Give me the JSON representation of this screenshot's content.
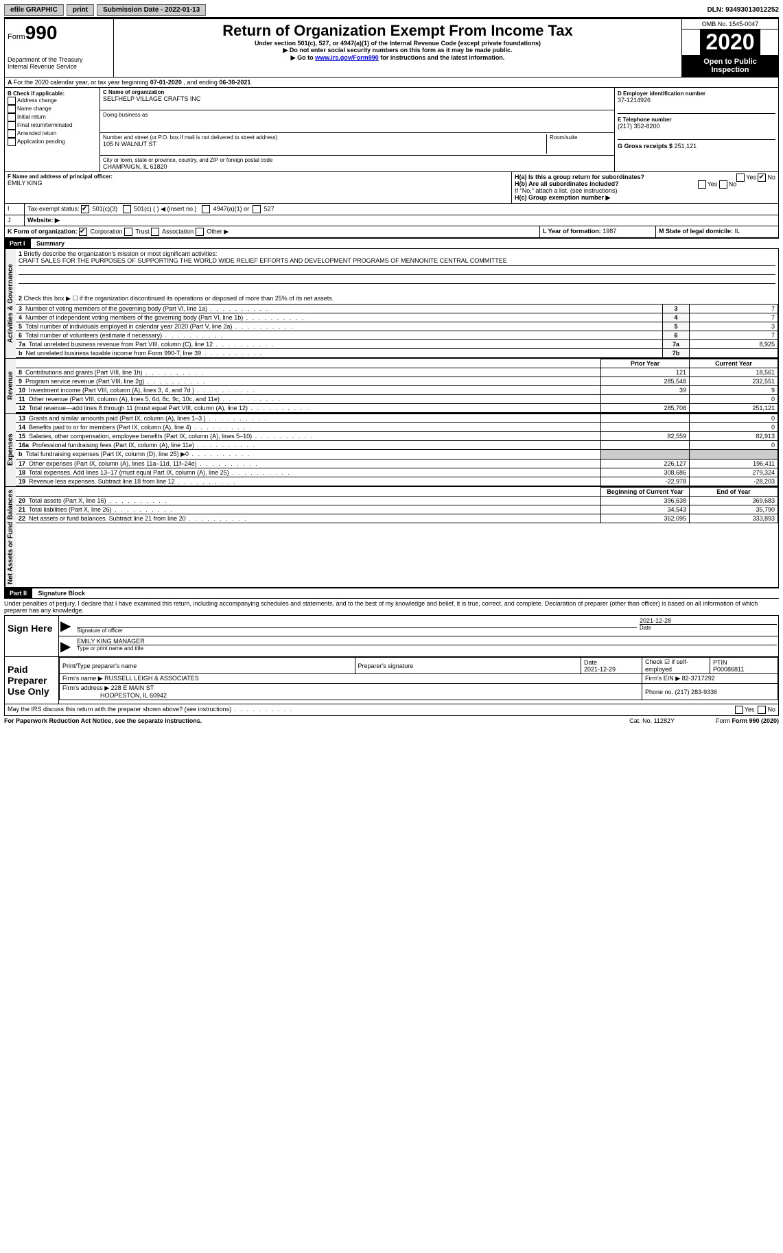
{
  "topbar": {
    "efile": "efile GRAPHIC",
    "print": "print",
    "submission_label": "Submission Date - ",
    "submission_date": "2022-01-13",
    "dln_label": "DLN: ",
    "dln": "93493013012252"
  },
  "header": {
    "form_small": "Form",
    "form_big": "990",
    "dept": "Department of the Treasury\nInternal Revenue Service",
    "title": "Return of Organization Exempt From Income Tax",
    "sub1": "Under section 501(c), 527, or 4947(a)(1) of the Internal Revenue Code (except private foundations)",
    "sub2": "▶ Do not enter social security numbers on this form as it may be made public.",
    "sub3a": "▶ Go to ",
    "sub3_link": "www.irs.gov/Form990",
    "sub3b": " for instructions and the latest information.",
    "omb": "OMB No. 1545-0047",
    "year": "2020",
    "open": "Open to Public Inspection"
  },
  "lineA": {
    "text_a": "For the 2020 calendar year, or tax year beginning ",
    "begin": "07-01-2020",
    "text_b": " , and ending ",
    "end": "06-30-2021"
  },
  "boxB": {
    "label": "B Check if applicable:",
    "opts": [
      "Address change",
      "Name change",
      "Initial return",
      "Final return/terminated",
      "Amended return",
      "Application pending"
    ]
  },
  "boxC": {
    "name_label": "C Name of organization",
    "name": "SELFHELP VILLAGE CRAFTS INC",
    "dba_label": "Doing business as",
    "addr_label": "Number and street (or P.O. box if mail is not delivered to street address)",
    "room_label": "Room/suite",
    "addr": "105 N WALNUT ST",
    "city_label": "City or town, state or province, country, and ZIP or foreign postal code",
    "city": "CHAMPAIGN, IL  61820"
  },
  "boxD": {
    "label": "D Employer identification number",
    "val": "37-1214926"
  },
  "boxE": {
    "label": "E Telephone number",
    "val": "(217) 352-8200"
  },
  "boxG": {
    "label": "G Gross receipts $ ",
    "val": "251,121"
  },
  "boxF": {
    "label": "F Name and address of principal officer:",
    "val": "EMILY KING"
  },
  "boxH": {
    "a_label": "H(a)  Is this a group return for subordinates?",
    "b_label": "H(b)  Are all subordinates included?",
    "note": "If \"No,\" attach a list. (see instructions)",
    "c_label": "H(c)  Group exemption number ▶",
    "yes": "Yes",
    "no": "No"
  },
  "lineI": {
    "label": "Tax-exempt status:",
    "o1": "501(c)(3)",
    "o2": "501(c) (   ) ◀ (insert no.)",
    "o3": "4947(a)(1) or",
    "o4": "527"
  },
  "lineJ": {
    "label": "Website: ▶"
  },
  "lineK": {
    "label": "K Form of organization:",
    "o1": "Corporation",
    "o2": "Trust",
    "o3": "Association",
    "o4": "Other ▶"
  },
  "lineL": {
    "label": "L Year of formation: ",
    "val": "1987"
  },
  "lineM": {
    "label": "M State of legal domicile: ",
    "val": "IL"
  },
  "part1": {
    "label": "Part I",
    "title": "Summary",
    "side_gov": "Activities & Governance",
    "side_rev": "Revenue",
    "side_exp": "Expenses",
    "side_net": "Net Assets or Fund Balances",
    "l1": "Briefly describe the organization's mission or most significant activities:",
    "l1_val": "CRAFT SALES FOR THE PURPOSES OF SUPPORTING THE WORLD WIDE RELIEF EFFORTS AND DEVELOPMENT PROGRAMS OF MENNONITE CENTRAL COMMITTEE",
    "l2": "Check this box ▶ ☐ if the organization discontinued its operations or disposed of more than 25% of its net assets.",
    "colh_prior": "Prior Year",
    "colh_curr": "Current Year",
    "colh_beg": "Beginning of Current Year",
    "colh_end": "End of Year",
    "rows_gov": [
      {
        "n": "3",
        "t": "Number of voting members of the governing body (Part VI, line 1a)",
        "c": "3",
        "v": "7"
      },
      {
        "n": "4",
        "t": "Number of independent voting members of the governing body (Part VI, line 1b)",
        "c": "4",
        "v": "7"
      },
      {
        "n": "5",
        "t": "Total number of individuals employed in calendar year 2020 (Part V, line 2a)",
        "c": "5",
        "v": "3"
      },
      {
        "n": "6",
        "t": "Total number of volunteers (estimate if necessary)",
        "c": "6",
        "v": "7"
      },
      {
        "n": "7a",
        "t": "Total unrelated business revenue from Part VIII, column (C), line 12",
        "c": "7a",
        "v": "8,925"
      },
      {
        "n": "b",
        "t": "Net unrelated business taxable income from Form 990-T, line 39",
        "c": "7b",
        "v": ""
      }
    ],
    "rows_rev": [
      {
        "n": "8",
        "t": "Contributions and grants (Part VIII, line 1h)",
        "p": "121",
        "c": "18,561"
      },
      {
        "n": "9",
        "t": "Program service revenue (Part VIII, line 2g)",
        "p": "285,548",
        "c": "232,551"
      },
      {
        "n": "10",
        "t": "Investment income (Part VIII, column (A), lines 3, 4, and 7d )",
        "p": "39",
        "c": "9"
      },
      {
        "n": "11",
        "t": "Other revenue (Part VIII, column (A), lines 5, 6d, 8c, 9c, 10c, and 11e)",
        "p": "",
        "c": "0"
      },
      {
        "n": "12",
        "t": "Total revenue—add lines 8 through 11 (must equal Part VIII, column (A), line 12)",
        "p": "285,708",
        "c": "251,121"
      }
    ],
    "rows_exp": [
      {
        "n": "13",
        "t": "Grants and similar amounts paid (Part IX, column (A), lines 1–3 )",
        "p": "",
        "c": "0"
      },
      {
        "n": "14",
        "t": "Benefits paid to or for members (Part IX, column (A), line 4)",
        "p": "",
        "c": "0"
      },
      {
        "n": "15",
        "t": "Salaries, other compensation, employee benefits (Part IX, column (A), lines 5–10)",
        "p": "82,559",
        "c": "82,913"
      },
      {
        "n": "16a",
        "t": "Professional fundraising fees (Part IX, column (A), line 11e)",
        "p": "",
        "c": "0"
      },
      {
        "n": "b",
        "t": "Total fundraising expenses (Part IX, column (D), line 25) ▶0",
        "p": "shade",
        "c": "shade"
      },
      {
        "n": "17",
        "t": "Other expenses (Part IX, column (A), lines 11a–11d, 11f–24e)",
        "p": "226,127",
        "c": "196,411"
      },
      {
        "n": "18",
        "t": "Total expenses. Add lines 13–17 (must equal Part IX, column (A), line 25)",
        "p": "308,686",
        "c": "279,324"
      },
      {
        "n": "19",
        "t": "Revenue less expenses. Subtract line 18 from line 12",
        "p": "-22,978",
        "c": "-28,203"
      }
    ],
    "rows_net": [
      {
        "n": "20",
        "t": "Total assets (Part X, line 16)",
        "p": "396,638",
        "c": "369,683"
      },
      {
        "n": "21",
        "t": "Total liabilities (Part X, line 26)",
        "p": "34,543",
        "c": "35,790"
      },
      {
        "n": "22",
        "t": "Net assets or fund balances. Subtract line 21 from line 20",
        "p": "362,095",
        "c": "333,893"
      }
    ]
  },
  "part2": {
    "label": "Part II",
    "title": "Signature Block",
    "decl": "Under penalties of perjury, I declare that I have examined this return, including accompanying schedules and statements, and to the best of my knowledge and belief, it is true, correct, and complete. Declaration of preparer (other than officer) is based on all information of which preparer has any knowledge.",
    "sign_here": "Sign Here",
    "sig_officer": "Signature of officer",
    "sig_date": "2021-12-28",
    "date_lbl": "Date",
    "officer_name": "EMILY KING  MANAGER",
    "type_lbl": "Type or print name and title",
    "paid": "Paid Preparer Use Only",
    "pp_name_lbl": "Print/Type preparer's name",
    "pp_sig_lbl": "Preparer's signature",
    "pp_date_lbl": "Date",
    "pp_date": "2021-12-29",
    "pp_check_lbl": "Check ☑ if self-employed",
    "pp_ptin_lbl": "PTIN",
    "pp_ptin": "P00086811",
    "firm_name_lbl": "Firm's name    ▶",
    "firm_name": "RUSSELL LEIGH & ASSOCIATES",
    "firm_ein_lbl": "Firm's EIN ▶",
    "firm_ein": "82-3717292",
    "firm_addr_lbl": "Firm's address ▶",
    "firm_addr": "228 E MAIN ST",
    "firm_city": "HOOPESTON, IL  60942",
    "firm_phone_lbl": "Phone no. ",
    "firm_phone": "(217) 283-9336",
    "discuss": "May the IRS discuss this return with the preparer shown above? (see instructions)",
    "yes": "Yes",
    "no": "No"
  },
  "footer": {
    "pra": "For Paperwork Reduction Act Notice, see the separate instructions.",
    "cat": "Cat. No. 11282Y",
    "form": "Form 990 (2020)"
  }
}
